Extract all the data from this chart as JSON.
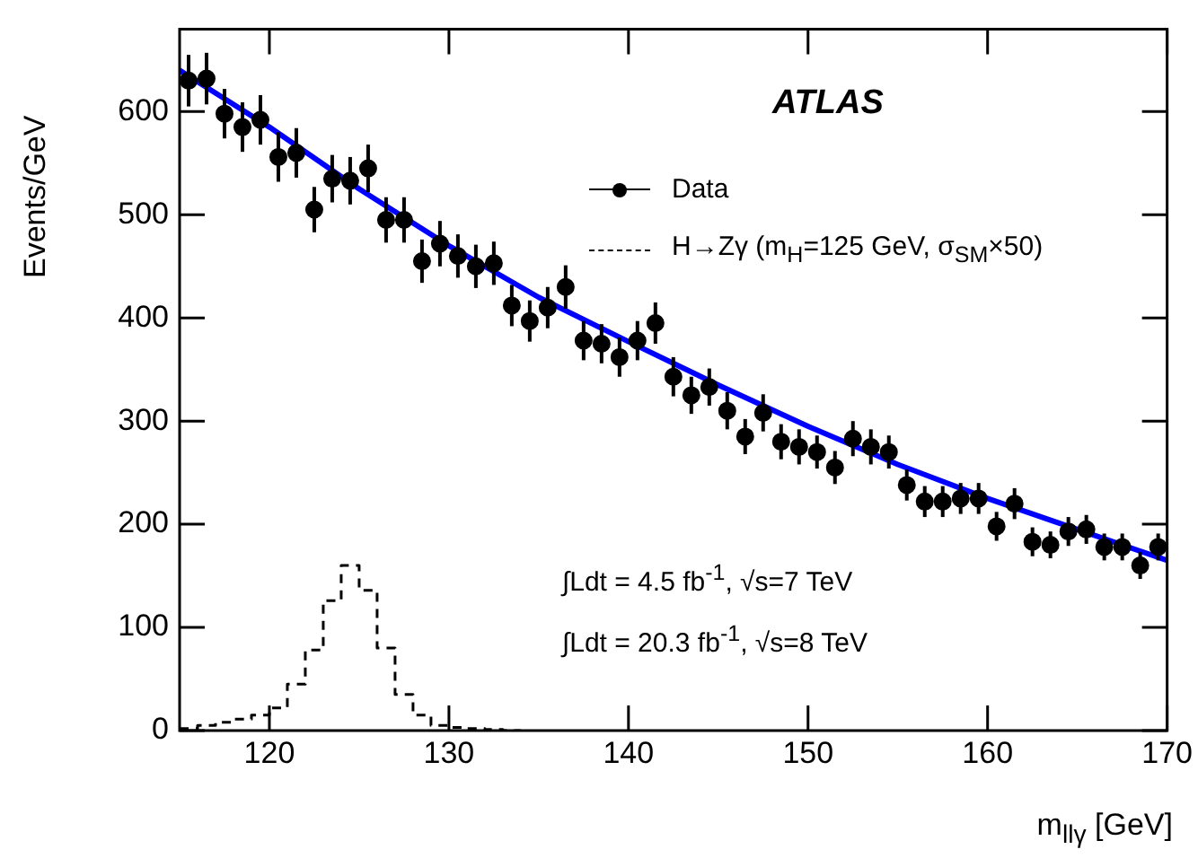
{
  "chart_data": {
    "type": "scatter",
    "xlabel": "m$_{llγ}$ [GeV]",
    "ylabel": "Events/GeV",
    "xlim": [
      115,
      170
    ],
    "xticks": [
      120,
      130,
      140,
      150,
      160,
      170
    ],
    "ylim": [
      0,
      680
    ],
    "yticks": [
      0,
      100,
      200,
      300,
      400,
      500,
      600
    ],
    "grid": false,
    "legend": "top right",
    "marker": "circle",
    "annotations": [
      "ATLAS",
      "∫Ldt = 4.5 fb$^{-1}$, √s=7 TeV",
      "∫Ldt = 20.3 fb$^{-1}$, √s=8 TeV"
    ],
    "series": [
      {
        "name": "Data",
        "color": "#000000",
        "x": [
          115.5,
          116.5,
          117.5,
          118.5,
          119.5,
          120.5,
          121.5,
          122.5,
          123.5,
          124.5,
          125.5,
          126.5,
          127.5,
          128.5,
          129.5,
          130.5,
          131.5,
          132.5,
          133.5,
          134.5,
          135.5,
          136.5,
          137.5,
          138.5,
          139.5,
          140.5,
          141.5,
          142.5,
          143.5,
          144.5,
          145.5,
          146.5,
          147.5,
          148.5,
          149.5,
          150.5,
          151.5,
          152.5,
          153.5,
          154.5,
          155.5,
          156.5,
          157.5,
          158.5,
          159.5,
          160.5,
          161.5,
          162.5,
          163.5,
          164.5,
          165.5,
          166.5,
          167.5,
          168.5,
          169.5
        ],
        "values": [
          630,
          632,
          598,
          585,
          592,
          556,
          560,
          505,
          535,
          533,
          545,
          495,
          495,
          455,
          472,
          460,
          450,
          453,
          412,
          397,
          410,
          430,
          378,
          375,
          362,
          378,
          395,
          343,
          325,
          333,
          310,
          285,
          308,
          280,
          275,
          270,
          255,
          283,
          275,
          270,
          238,
          222,
          222,
          225,
          225,
          198,
          220,
          183,
          180,
          193,
          195,
          178,
          178,
          160,
          178
        ],
        "errors": [
          25,
          25,
          24,
          24,
          24,
          24,
          24,
          22,
          23,
          23,
          23,
          22,
          22,
          21,
          22,
          21,
          21,
          21,
          20,
          20,
          20,
          21,
          19,
          19,
          19,
          19,
          20,
          19,
          18,
          18,
          18,
          17,
          18,
          17,
          17,
          16,
          16,
          17,
          17,
          16,
          15,
          15,
          15,
          15,
          15,
          14,
          15,
          14,
          13,
          14,
          14,
          13,
          13,
          13,
          13
        ]
      },
      {
        "type": "line",
        "color": "#0000ff",
        "marker": "none",
        "x": [
          115,
          120,
          125,
          130,
          135,
          140,
          145,
          150,
          155,
          160,
          165,
          170
        ],
        "values": [
          640,
          585,
          525,
          470,
          420,
          377,
          335,
          295,
          258,
          225,
          195,
          165
        ]
      },
      {
        "name": "H→Zγ (m$_{H}$=125 GeV, σ$_{SM}$×50)",
        "type": "step",
        "color": "#000000",
        "line_style": "dashed",
        "marker": "none",
        "x": [
          115,
          116,
          117,
          118,
          119,
          120,
          121,
          122,
          123,
          124,
          125,
          126,
          127,
          128,
          129,
          130,
          131,
          132,
          133,
          134
        ],
        "values": [
          2,
          5,
          8,
          11,
          15,
          22,
          45,
          78,
          126,
          160,
          136,
          80,
          35,
          15,
          5,
          3,
          2,
          1,
          0,
          0
        ]
      }
    ]
  }
}
